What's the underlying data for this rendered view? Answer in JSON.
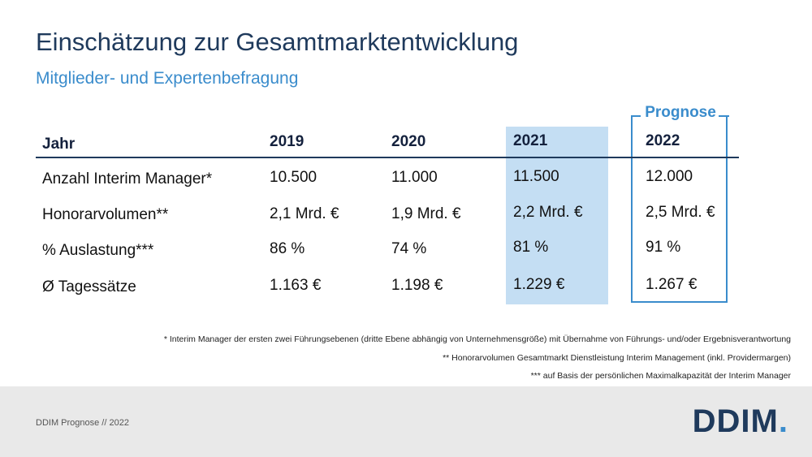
{
  "title": "Einschätzung zur Gesamtmarktentwicklung",
  "subtitle": "Mitglieder- und Expertenbefragung",
  "prognose_label": "Prognose",
  "table": {
    "header": [
      "Jahr",
      "2019",
      "2020",
      "2021",
      "2022"
    ],
    "rows": [
      [
        "Anzahl Interim Manager*",
        "10.500",
        "11.000",
        "11.500",
        "12.000"
      ],
      [
        "Honorarvolumen**",
        "2,1 Mrd. €",
        "1,9 Mrd. €",
        "2,2 Mrd. €",
        "2,5 Mrd. €"
      ],
      [
        "% Auslastung***",
        "86 %",
        "74 %",
        "81 %",
        "91 %"
      ],
      [
        "Ø Tagessätze",
        "1.163 €",
        "1.198 €",
        "1.229 €",
        "1.267 €"
      ]
    ]
  },
  "footnotes": [
    "* Interim Manager der ersten zwei Führungsebenen (dritte Ebene abhängig von Unternehmensgröße) mit Übernahme von Führungs- und/oder Ergebnisverantwortung",
    "** Honorarvolumen  Gesamtmarkt Dienstleistung Interim Management (inkl. Providermargen)",
    "*** auf Basis der persönlichen Maximalkapazität der Interim Manager"
  ],
  "footer_text": "DDIM Prognose // 2022",
  "logo": {
    "text": "DDIM",
    "dot": "."
  },
  "colors": {
    "navy": "#1f3a5c",
    "accent_blue": "#3a8ccc",
    "highlight": "#c4def3"
  }
}
